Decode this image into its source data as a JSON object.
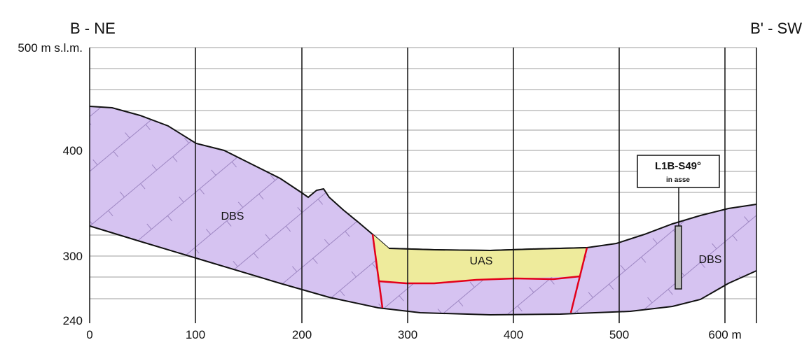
{
  "header": {
    "left": "B - NE",
    "right": "B' - SW"
  },
  "y_axis": {
    "labels": [
      "500 m s.l.m.",
      "400",
      "300",
      "240"
    ]
  },
  "x_axis": {
    "labels": [
      "0",
      "100",
      "200",
      "300",
      "400",
      "500",
      "600 m"
    ]
  },
  "units": [
    {
      "label": "DBS"
    },
    {
      "label": "UAS"
    },
    {
      "label": "DBS"
    }
  ],
  "borehole": {
    "title": "L1B-S49°",
    "subtitle": "in asse"
  }
}
